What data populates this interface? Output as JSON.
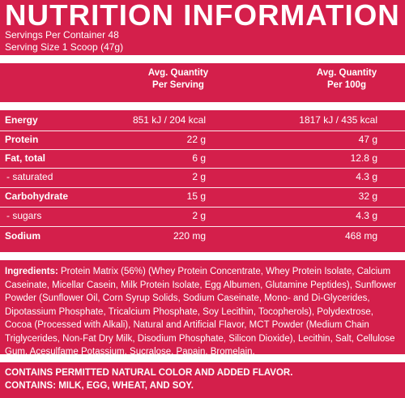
{
  "title": "NUTRITION INFORMATION",
  "servings_per_container": "Servings Per Container 48",
  "serving_size": "Serving Size 1 Scoop (47g)",
  "headers": {
    "per_serving_line1": "Avg. Quantity",
    "per_serving_line2": "Per Serving",
    "per_100g_line1": "Avg. Quantity",
    "per_100g_line2": "Per 100g"
  },
  "rows": [
    {
      "name": "Energy",
      "per_serving": "851 kJ / 204 kcal",
      "per_100g": "1817 kJ / 435 kcal"
    },
    {
      "name": "Protein",
      "per_serving": "22 g",
      "per_100g": "47 g"
    },
    {
      "name": "Fat, total",
      "per_serving": "6 g",
      "per_100g": "12.8 g"
    },
    {
      "name": "- saturated",
      "per_serving": "2 g",
      "per_100g": "4.3 g"
    },
    {
      "name": "Carbohydrate",
      "per_serving": "15 g",
      "per_100g": "32 g"
    },
    {
      "name": "- sugars",
      "per_serving": "2 g",
      "per_100g": "4.3 g"
    },
    {
      "name": "Sodium",
      "per_serving": "220 mg",
      "per_100g": "468 mg"
    }
  ],
  "ingredients_label": "Ingredients:",
  "ingredients_text": " Protein Matrix (56%) (Whey Protein Concentrate, Whey Protein Isolate, Calcium Caseinate, Micellar Casein, Milk Protein Isolate, Egg Albumen, Glutamine Peptides), Sunflower Powder (Sunflower Oil, Corn Syrup Solids, Sodium Caseinate, Mono- and Di-Glycerides, Dipotassium Phosphate, Tricalcium Phosphate, Soy  Lecithin, Tocopherols), Polydextrose, Cocoa (Processed with Alkali), Natural and Artificial Flavor, MCT Powder (Medium Chain Triglycerides, Non-Fat Dry Milk, Disodium Phosphate, Silicon Dioxide), Lecithin, Salt, Cellulose Gum, Acesulfame Potassium, Sucralose, Papain, Bromelain.",
  "contains_line1": "CONTAINS PERMITTED NATURAL COLOR AND ADDED FLAVOR.",
  "contains_line2": "CONTAINS: MILK, EGG, WHEAT, AND SOY."
}
